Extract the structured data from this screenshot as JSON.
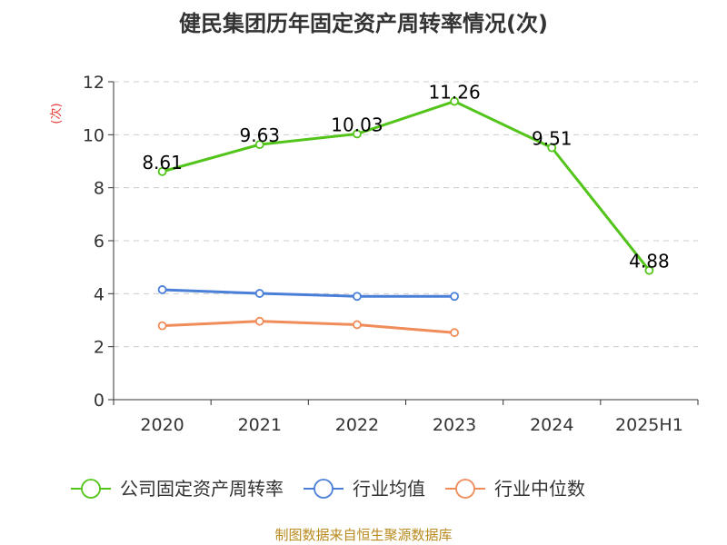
{
  "chart_data": {
    "type": "line",
    "title": "健民集团历年固定资产周转率情况(次)",
    "ylabel": "(次)",
    "xlabel": "",
    "categories": [
      "2020",
      "2021",
      "2022",
      "2023",
      "2024",
      "2025H1"
    ],
    "ylim": [
      0,
      12
    ],
    "yticks": [
      0,
      2,
      4,
      6,
      8,
      10,
      12
    ],
    "grid": true,
    "legend_position": "bottom",
    "series": [
      {
        "name": "公司固定资产周转率",
        "color": "#52c41a",
        "values": [
          8.61,
          9.63,
          10.03,
          11.26,
          9.51,
          4.88
        ],
        "show_labels": true
      },
      {
        "name": "行业均值",
        "color": "#4a7fd8",
        "values": [
          4.15,
          4.01,
          3.9,
          3.9,
          null,
          null
        ],
        "show_labels": false
      },
      {
        "name": "行业中位数",
        "color": "#f08c5a",
        "values": [
          2.79,
          2.96,
          2.83,
          2.53,
          null,
          null
        ],
        "show_labels": false
      }
    ]
  },
  "source_text": "制图数据来自恒生聚源数据库",
  "colors": {
    "title": "#333333",
    "ylabel": "#e53935",
    "axis": "#333333",
    "grid": "#cccccc",
    "source": "#b88a1e"
  }
}
